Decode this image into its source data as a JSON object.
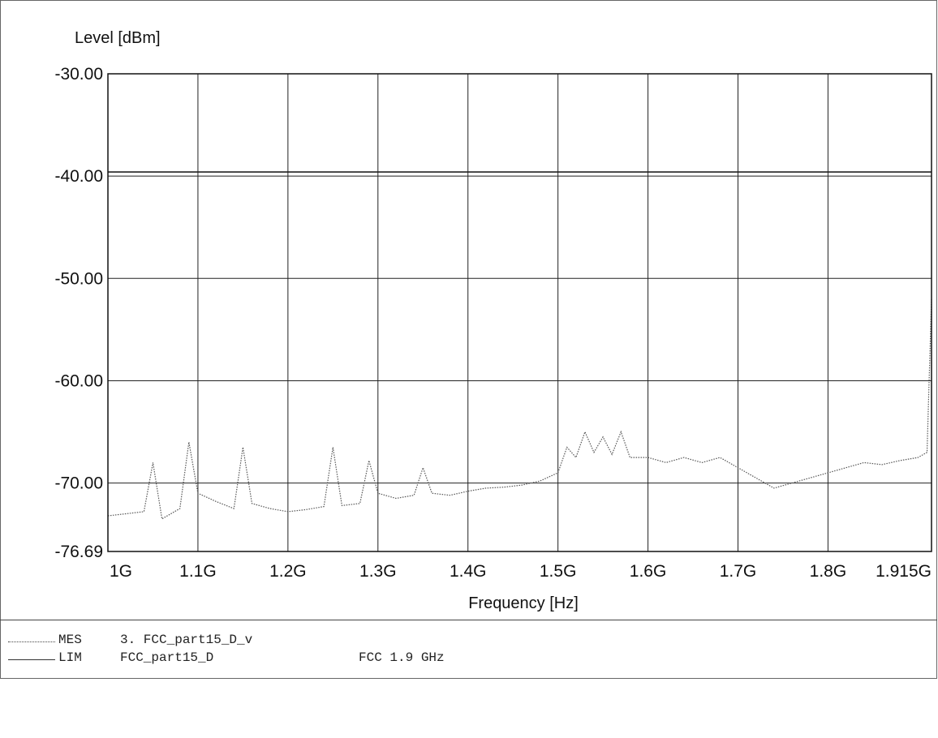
{
  "chart_data": {
    "type": "line",
    "ylabel": "Level [dBm]",
    "xlabel": "Frequency [Hz]",
    "ylim": [
      -76.69,
      -30.0
    ],
    "xlim": [
      1.0,
      1.915
    ],
    "x_unit": "GHz",
    "y_ticks": [
      "-30.00",
      "-40.00",
      "-50.00",
      "-60.00",
      "-70.00",
      "-76.69"
    ],
    "y_tick_values": [
      -30.0,
      -40.0,
      -50.0,
      -60.0,
      -70.0,
      -76.69
    ],
    "x_ticks": [
      "1G",
      "1.1G",
      "1.2G",
      "1.3G",
      "1.4G",
      "1.5G",
      "1.6G",
      "1.7G",
      "1.8G",
      "1.915G"
    ],
    "x_tick_values": [
      1.0,
      1.1,
      1.2,
      1.3,
      1.4,
      1.5,
      1.6,
      1.7,
      1.8,
      1.915
    ],
    "grid": true,
    "series": [
      {
        "name": "MES",
        "style": "dotted",
        "x": [
          1.0,
          1.02,
          1.04,
          1.05,
          1.06,
          1.08,
          1.09,
          1.1,
          1.12,
          1.14,
          1.15,
          1.16,
          1.18,
          1.2,
          1.22,
          1.24,
          1.25,
          1.26,
          1.28,
          1.29,
          1.3,
          1.32,
          1.34,
          1.35,
          1.36,
          1.38,
          1.4,
          1.42,
          1.44,
          1.46,
          1.48,
          1.5,
          1.51,
          1.52,
          1.53,
          1.54,
          1.55,
          1.56,
          1.57,
          1.58,
          1.6,
          1.62,
          1.64,
          1.66,
          1.68,
          1.7,
          1.72,
          1.74,
          1.76,
          1.78,
          1.8,
          1.82,
          1.84,
          1.86,
          1.88,
          1.9,
          1.91,
          1.915
        ],
        "y": [
          -73.2,
          -73.0,
          -72.8,
          -68.0,
          -73.5,
          -72.5,
          -66.0,
          -71.0,
          -71.8,
          -72.5,
          -66.5,
          -72.0,
          -72.5,
          -72.8,
          -72.6,
          -72.3,
          -66.5,
          -72.2,
          -72.0,
          -67.8,
          -71.0,
          -71.5,
          -71.2,
          -68.5,
          -71.0,
          -71.2,
          -70.8,
          -70.5,
          -70.4,
          -70.2,
          -69.8,
          -69.0,
          -66.5,
          -67.5,
          -65.0,
          -67.0,
          -65.5,
          -67.2,
          -65.0,
          -67.5,
          -67.5,
          -68.0,
          -67.5,
          -68.0,
          -67.5,
          -68.5,
          -69.5,
          -70.5,
          -70.0,
          -69.5,
          -69.0,
          -68.5,
          -68.0,
          -68.2,
          -67.8,
          -67.5,
          -67.0,
          -52.0
        ]
      },
      {
        "name": "LIM",
        "style": "solid",
        "x": [
          1.0,
          1.915
        ],
        "y": [
          -39.6,
          -39.6
        ]
      }
    ]
  },
  "legend": [
    {
      "code": "MES",
      "name": "3. FCC_part15_D_v",
      "desc": ""
    },
    {
      "code": "LIM",
      "name": "FCC_part15_D",
      "desc": "FCC 1.9 GHz"
    }
  ]
}
